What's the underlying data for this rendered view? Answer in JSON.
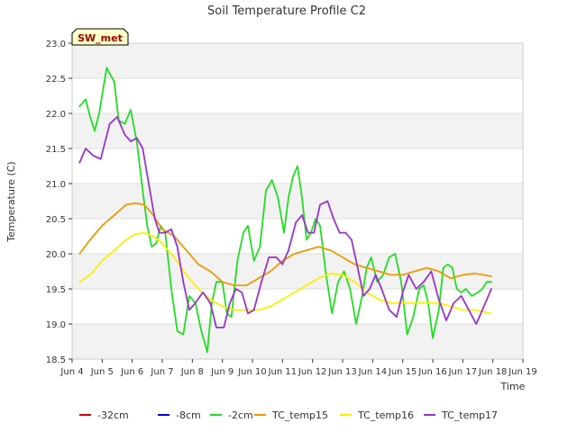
{
  "chart_data": {
    "type": "line",
    "title": "Soil Temperature Profile C2",
    "xlabel": "Time",
    "ylabel": "Temperature (C)",
    "site_badge": "SW_met",
    "x_unit": "day of June",
    "xlim": [
      4.0,
      19.0
    ],
    "ylim": [
      18.5,
      23.0
    ],
    "x_ticks": [
      {
        "value": 4,
        "label": "Jun 4"
      },
      {
        "value": 5,
        "label": "Jun 5"
      },
      {
        "value": 6,
        "label": "Jun 6"
      },
      {
        "value": 7,
        "label": "Jun 7"
      },
      {
        "value": 8,
        "label": "Jun 8"
      },
      {
        "value": 9,
        "label": "Jun 9"
      },
      {
        "value": 10,
        "label": "Jun 10"
      },
      {
        "value": 11,
        "label": "Jun 11"
      },
      {
        "value": 12,
        "label": "Jun 12"
      },
      {
        "value": 13,
        "label": "Jun 13"
      },
      {
        "value": 14,
        "label": "Jun 14"
      },
      {
        "value": 15,
        "label": "Jun 15"
      },
      {
        "value": 16,
        "label": "Jun 16"
      },
      {
        "value": 17,
        "label": "Jun 17"
      },
      {
        "value": 18,
        "label": "Jun 18"
      },
      {
        "value": 19,
        "label": "Jun 19"
      }
    ],
    "y_ticks": [
      "18.5",
      "19.0",
      "19.5",
      "20.0",
      "20.5",
      "21.0",
      "21.5",
      "22.0",
      "22.5",
      "23.0"
    ],
    "grid": true,
    "legend_position": "bottom",
    "series": [
      {
        "name": "-32cm",
        "color": "#cc0000",
        "x": [],
        "y": []
      },
      {
        "name": "-8cm",
        "color": "#0000cc",
        "x": [],
        "y": []
      },
      {
        "name": "-2cm",
        "color": "#22dd22",
        "x": [
          4.25,
          4.45,
          4.6,
          4.75,
          4.9,
          5.15,
          5.4,
          5.55,
          5.75,
          5.95,
          6.15,
          6.35,
          6.5,
          6.65,
          6.8,
          6.95,
          7.1,
          7.3,
          7.5,
          7.7,
          7.9,
          8.1,
          8.3,
          8.5,
          8.65,
          8.8,
          9.0,
          9.15,
          9.3,
          9.5,
          9.7,
          9.85,
          10.05,
          10.25,
          10.45,
          10.65,
          10.85,
          11.05,
          11.2,
          11.35,
          11.5,
          11.65,
          11.8,
          11.95,
          12.1,
          12.25,
          12.45,
          12.65,
          12.85,
          13.05,
          13.25,
          13.45,
          13.65,
          13.8,
          13.95,
          14.15,
          14.35,
          14.55,
          14.75,
          14.95,
          15.15,
          15.35,
          15.55,
          15.7,
          15.85,
          16.0,
          16.2,
          16.35,
          16.5,
          16.65,
          16.8,
          16.95,
          17.1,
          17.3,
          17.5,
          17.65,
          17.8,
          17.95
        ],
        "y": [
          22.1,
          22.2,
          21.95,
          21.75,
          22.0,
          22.65,
          22.45,
          21.9,
          21.85,
          22.05,
          21.6,
          20.9,
          20.4,
          20.1,
          20.15,
          20.4,
          20.3,
          19.5,
          18.9,
          18.85,
          19.4,
          19.3,
          18.9,
          18.6,
          19.3,
          19.6,
          19.6,
          19.15,
          19.1,
          19.9,
          20.3,
          20.4,
          19.9,
          20.1,
          20.9,
          21.05,
          20.8,
          20.3,
          20.8,
          21.1,
          21.25,
          20.8,
          20.2,
          20.3,
          20.5,
          20.4,
          19.7,
          19.15,
          19.6,
          19.75,
          19.5,
          19.0,
          19.4,
          19.8,
          19.95,
          19.6,
          19.7,
          19.95,
          20.0,
          19.6,
          18.85,
          19.1,
          19.5,
          19.55,
          19.3,
          18.8,
          19.2,
          19.8,
          19.85,
          19.8,
          19.5,
          19.45,
          19.5,
          19.4,
          19.45,
          19.5,
          19.6,
          19.6
        ]
      },
      {
        "name": "TC_temp15",
        "color": "#ee9900",
        "x": [
          4.25,
          4.6,
          5.0,
          5.4,
          5.8,
          6.1,
          6.4,
          6.7,
          7.0,
          7.4,
          7.8,
          8.2,
          8.6,
          9.0,
          9.4,
          9.8,
          10.2,
          10.6,
          11.0,
          11.4,
          11.8,
          12.2,
          12.6,
          13.0,
          13.4,
          13.8,
          14.2,
          14.6,
          15.0,
          15.4,
          15.8,
          16.2,
          16.6,
          17.0,
          17.4,
          17.95
        ],
        "y": [
          20.0,
          20.2,
          20.4,
          20.55,
          20.7,
          20.72,
          20.7,
          20.55,
          20.35,
          20.25,
          20.05,
          19.85,
          19.75,
          19.6,
          19.55,
          19.55,
          19.65,
          19.75,
          19.9,
          20.0,
          20.05,
          20.1,
          20.05,
          19.95,
          19.85,
          19.8,
          19.75,
          19.7,
          19.7,
          19.75,
          19.8,
          19.75,
          19.65,
          19.7,
          19.72,
          19.68
        ]
      },
      {
        "name": "TC_temp16",
        "color": "#ffee00",
        "x": [
          4.25,
          4.6,
          5.0,
          5.4,
          5.8,
          6.1,
          6.4,
          6.7,
          7.0,
          7.4,
          7.8,
          8.2,
          8.6,
          9.0,
          9.4,
          9.8,
          10.2,
          10.6,
          11.0,
          11.4,
          11.8,
          12.2,
          12.6,
          13.0,
          13.4,
          13.8,
          14.2,
          14.6,
          15.0,
          15.4,
          15.8,
          16.2,
          16.6,
          17.0,
          17.4,
          17.95
        ],
        "y": [
          19.6,
          19.7,
          19.9,
          20.05,
          20.2,
          20.28,
          20.3,
          20.25,
          20.15,
          19.95,
          19.7,
          19.5,
          19.35,
          19.25,
          19.2,
          19.2,
          19.2,
          19.25,
          19.35,
          19.45,
          19.55,
          19.65,
          19.72,
          19.7,
          19.6,
          19.45,
          19.35,
          19.3,
          19.3,
          19.3,
          19.3,
          19.3,
          19.25,
          19.2,
          19.2,
          19.15
        ]
      },
      {
        "name": "TC_temp17",
        "color": "#9933cc",
        "x": [
          4.25,
          4.45,
          4.7,
          4.95,
          5.25,
          5.5,
          5.75,
          5.95,
          6.15,
          6.35,
          6.55,
          6.75,
          6.9,
          7.1,
          7.3,
          7.5,
          7.7,
          7.9,
          8.1,
          8.35,
          8.6,
          8.8,
          9.05,
          9.25,
          9.45,
          9.65,
          9.85,
          10.05,
          10.3,
          10.55,
          10.8,
          11.0,
          11.2,
          11.45,
          11.65,
          11.85,
          12.05,
          12.25,
          12.5,
          12.7,
          12.9,
          13.1,
          13.3,
          13.5,
          13.7,
          13.9,
          14.1,
          14.3,
          14.55,
          14.8,
          15.0,
          15.2,
          15.45,
          15.7,
          15.95,
          16.2,
          16.45,
          16.7,
          16.95,
          17.2,
          17.45,
          17.7,
          17.95
        ],
        "y": [
          21.3,
          21.5,
          21.4,
          21.35,
          21.85,
          21.95,
          21.7,
          21.6,
          21.65,
          21.5,
          21.0,
          20.5,
          20.3,
          20.3,
          20.35,
          20.1,
          19.6,
          19.2,
          19.3,
          19.45,
          19.3,
          18.95,
          18.95,
          19.3,
          19.5,
          19.45,
          19.15,
          19.2,
          19.6,
          19.95,
          19.95,
          19.85,
          20.05,
          20.45,
          20.55,
          20.3,
          20.3,
          20.7,
          20.75,
          20.5,
          20.3,
          20.3,
          20.2,
          19.8,
          19.4,
          19.5,
          19.7,
          19.5,
          19.2,
          19.1,
          19.45,
          19.7,
          19.5,
          19.6,
          19.75,
          19.35,
          19.05,
          19.3,
          19.4,
          19.2,
          19.0,
          19.25,
          19.5
        ]
      }
    ]
  }
}
